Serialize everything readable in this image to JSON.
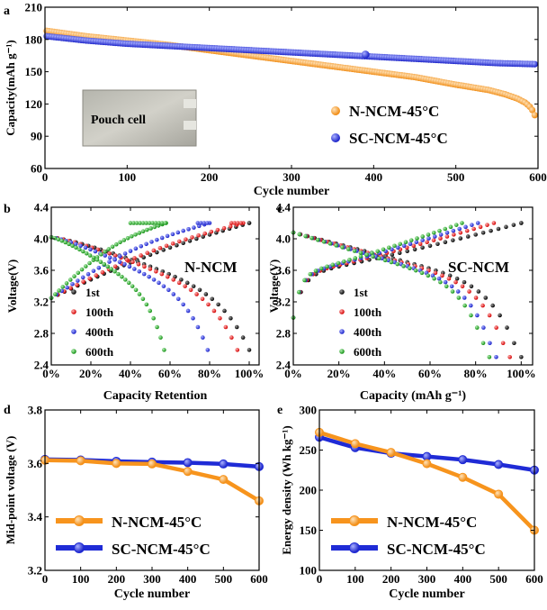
{
  "colors": {
    "orange": "#f7941d",
    "blue": "#1f2bd6",
    "black": "#111111",
    "red": "#e41a1c",
    "green": "#21a121",
    "axis": "#000000"
  },
  "chart_data": [
    {
      "panel": "a",
      "type": "scatter",
      "xlabel": "Cycle number",
      "ylabel": "Capacity(mAh g⁻¹)",
      "xlim": [
        0,
        600
      ],
      "ylim": [
        60,
        210
      ],
      "xticks": [
        0,
        100,
        200,
        300,
        400,
        500,
        600
      ],
      "yticks": [
        60,
        90,
        120,
        150,
        180,
        210
      ],
      "inset_label": "Pouch cell",
      "legend_position": "bottom-right",
      "series": [
        {
          "name": "N-NCM-45°C",
          "color_key": "orange",
          "x": [
            2,
            50,
            100,
            150,
            200,
            250,
            300,
            350,
            400,
            450,
            500,
            540,
            560,
            575,
            585,
            592,
            597
          ],
          "y": [
            188,
            183,
            179,
            175,
            170,
            165,
            160,
            155,
            150,
            145,
            138,
            133,
            129,
            125,
            121,
            116,
            108
          ]
        },
        {
          "name": "SC-NCM-45°C",
          "color_key": "blue",
          "x": [
            2,
            50,
            100,
            150,
            200,
            250,
            300,
            350,
            400,
            450,
            500,
            550,
            597
          ],
          "y": [
            183,
            179,
            176,
            174,
            172,
            170,
            168,
            166,
            164,
            162,
            160,
            158,
            157
          ]
        }
      ]
    },
    {
      "panel": "b",
      "type": "scatter",
      "title": "N-NCM",
      "xlabel": "Capacity Retention",
      "ylabel": "Voltage(V)",
      "xlim": [
        0,
        105
      ],
      "ylim": [
        2.4,
        4.4
      ],
      "xticks": [
        "0%",
        "20%",
        "40%",
        "60%",
        "80%",
        "100%"
      ],
      "yticks": [
        2.4,
        2.8,
        3.2,
        3.6,
        4.0,
        4.4
      ],
      "series": [
        {
          "name": "1st",
          "color_key": "black",
          "charge_end": 100,
          "discharge_end": 100
        },
        {
          "name": "100th",
          "color_key": "red",
          "charge_end": 97,
          "discharge_end": 94
        },
        {
          "name": "400th",
          "color_key": "blue",
          "charge_end": 80,
          "discharge_end": 79
        },
        {
          "name": "600th",
          "color_key": "green",
          "charge_end": 58,
          "discharge_end": 57
        }
      ]
    },
    {
      "panel": "c",
      "type": "scatter",
      "title": "SC-NCM",
      "xlabel": "Capacity (mAh g⁻¹)",
      "ylabel": "Voltage(V)",
      "xlim": [
        0,
        105
      ],
      "ylim": [
        2.4,
        4.4
      ],
      "xticks": [
        "0%",
        "20%",
        "40%",
        "60%",
        "80%",
        "100%"
      ],
      "yticks": [
        2.4,
        2.8,
        3.2,
        3.6,
        4.0,
        4.4
      ],
      "series": [
        {
          "name": "1st",
          "color_key": "black",
          "charge_end": 100,
          "discharge_end": 100
        },
        {
          "name": "100th",
          "color_key": "red",
          "charge_end": 88,
          "discharge_end": 95
        },
        {
          "name": "400th",
          "color_key": "blue",
          "charge_end": 81,
          "discharge_end": 89
        },
        {
          "name": "600th",
          "color_key": "green",
          "charge_end": 74,
          "discharge_end": 86
        }
      ]
    },
    {
      "panel": "d",
      "type": "line",
      "xlabel": "Cycle number",
      "ylabel": "Mid-point voltage (V)",
      "xlim": [
        0,
        600
      ],
      "ylim": [
        3.2,
        3.8
      ],
      "xticks": [
        0,
        100,
        200,
        300,
        400,
        500,
        600
      ],
      "yticks": [
        3.2,
        3.4,
        3.6,
        3.8
      ],
      "legend_position": "bottom-left",
      "series": [
        {
          "name": "N-NCM-45°C",
          "color_key": "orange",
          "x": [
            0,
            100,
            200,
            300,
            400,
            500,
            600
          ],
          "y": [
            3.612,
            3.61,
            3.6,
            3.598,
            3.57,
            3.54,
            3.46
          ]
        },
        {
          "name": "SC-NCM-45°C",
          "color_key": "blue",
          "x": [
            0,
            100,
            200,
            300,
            400,
            500,
            600
          ],
          "y": [
            3.615,
            3.613,
            3.608,
            3.605,
            3.603,
            3.598,
            3.588
          ]
        }
      ]
    },
    {
      "panel": "e",
      "type": "line",
      "xlabel": "Cycle number",
      "ylabel": "Energy density (Wh kg⁻¹)",
      "xlim": [
        0,
        600
      ],
      "ylim": [
        100,
        300
      ],
      "xticks": [
        0,
        100,
        200,
        300,
        400,
        500,
        600
      ],
      "yticks": [
        100,
        150,
        200,
        250,
        300
      ],
      "legend_position": "bottom-left",
      "series": [
        {
          "name": "N-NCM-45°C",
          "color_key": "orange",
          "x": [
            0,
            100,
            200,
            300,
            400,
            500,
            600
          ],
          "y": [
            272,
            258,
            247,
            233,
            216,
            195,
            150
          ]
        },
        {
          "name": "SC-NCM-45°C",
          "color_key": "blue",
          "x": [
            0,
            100,
            200,
            300,
            400,
            500,
            600
          ],
          "y": [
            266,
            253,
            246,
            242,
            238,
            232,
            225
          ]
        }
      ]
    }
  ]
}
